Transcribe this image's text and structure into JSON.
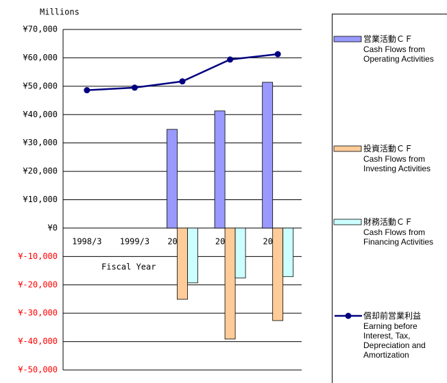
{
  "chart_data": {
    "type": "bar",
    "y_unit_label": "Millions",
    "x_label": "Fiscal Year",
    "categories": [
      "1998/3",
      "1999/3",
      "2000/3",
      "2001/3",
      "2002/3"
    ],
    "series": [
      {
        "name": "営業活動ＣＦ",
        "description": "Cash Flows from Operating Activities",
        "type": "bar",
        "color": "#9999ff",
        "values": [
          null,
          null,
          34800,
          41300,
          51400
        ]
      },
      {
        "name": "投資活動ＣＦ",
        "description": "Cash Flows from Investing Activities",
        "type": "bar",
        "color": "#ffcc99",
        "values": [
          null,
          null,
          -25100,
          -39100,
          -32600
        ]
      },
      {
        "name": "財務活動ＣＦ",
        "description": "Cash Flows from Financing Activities",
        "type": "bar",
        "color": "#ccffff",
        "values": [
          null,
          null,
          -19300,
          -17600,
          -17100
        ]
      },
      {
        "name": "償却前営業利益",
        "description": "Earning before Interest, Tax, Depreciation and Amortization",
        "type": "line",
        "color": "#000080",
        "values": [
          48600,
          49500,
          51700,
          59400,
          61300
        ]
      }
    ],
    "ylim": [
      -50000,
      70000
    ],
    "yticks": [
      {
        "value": -50000,
        "label": "¥-50,000"
      },
      {
        "value": -40000,
        "label": "¥-40,000"
      },
      {
        "value": -30000,
        "label": "¥-30,000"
      },
      {
        "value": -20000,
        "label": "¥-20,000"
      },
      {
        "value": -10000,
        "label": "¥-10,000"
      },
      {
        "value": 0,
        "label": "¥0"
      },
      {
        "value": 10000,
        "label": "¥10,000"
      },
      {
        "value": 20000,
        "label": "¥20,000"
      },
      {
        "value": 30000,
        "label": "¥30,000"
      },
      {
        "value": 40000,
        "label": "¥40,000"
      },
      {
        "value": 50000,
        "label": "¥50,000"
      },
      {
        "value": 60000,
        "label": "¥60,000"
      },
      {
        "value": 70000,
        "label": "¥70,000"
      }
    ],
    "grid": true
  }
}
